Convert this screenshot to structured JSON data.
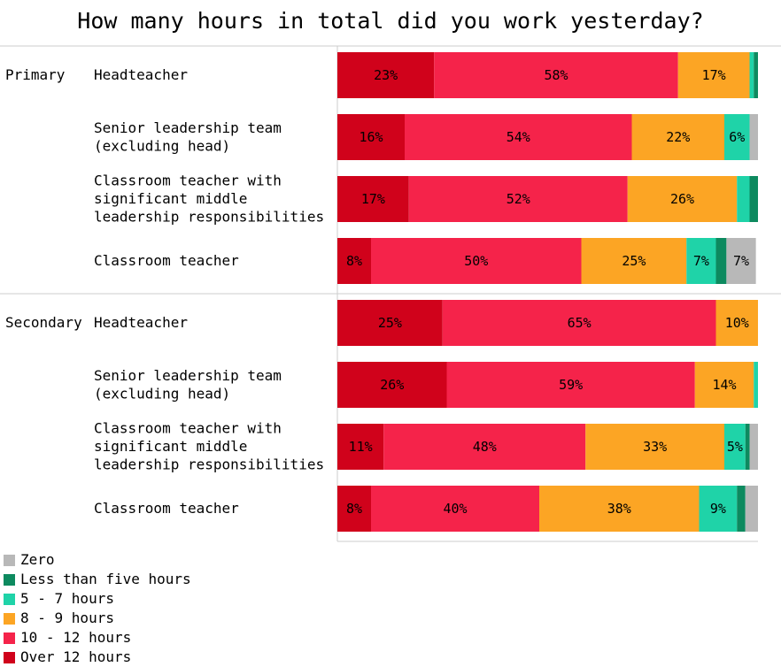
{
  "chart_data": {
    "type": "bar",
    "orientation": "horizontal",
    "stacked": true,
    "title": "How many hours in total did you work yesterday?",
    "xlabel": "",
    "ylabel": "",
    "xlim": [
      0,
      100
    ],
    "grid": false,
    "legend_position": "bottom-left",
    "groups": [
      {
        "name": "Primary",
        "categories": [
          "Headteacher",
          "Senior leadership team\n(excluding head)",
          "Classroom teacher with\nsignificant middle\nleadership responsibilities",
          "Classroom teacher"
        ]
      },
      {
        "name": "Secondary",
        "categories": [
          "Headteacher",
          "Senior leadership team\n(excluding head)",
          "Classroom teacher with\nsignificant middle\nleadership responsibilities",
          "Classroom teacher"
        ]
      }
    ],
    "series": [
      {
        "name": "Over 12 hours",
        "color": "#d0021b",
        "values": [
          23,
          16,
          17,
          8,
          25,
          26,
          11,
          8
        ]
      },
      {
        "name": "10 - 12 hours",
        "color": "#f5234a",
        "values": [
          58,
          54,
          52,
          50,
          65,
          59,
          48,
          40
        ]
      },
      {
        "name": "8 - 9 hours",
        "color": "#fca524",
        "values": [
          17,
          22,
          26,
          25,
          10,
          14,
          33,
          38
        ]
      },
      {
        "name": "5 - 7 hours",
        "color": "#1fd3a8",
        "values": [
          1,
          6,
          3,
          7,
          0,
          1,
          5,
          9
        ]
      },
      {
        "name": "Less than five hours",
        "color": "#0d8a5f",
        "values": [
          1,
          0,
          2,
          2.5,
          0,
          0,
          1,
          2
        ]
      },
      {
        "name": "Zero",
        "color": "#b8b8b8",
        "values": [
          0,
          2,
          0,
          7,
          0,
          0,
          2,
          3
        ]
      }
    ],
    "legend_order": [
      "Zero",
      "Less than five hours",
      "5 - 7 hours",
      "8 - 9 hours",
      "10 - 12 hours",
      "Over 12 hours"
    ]
  }
}
